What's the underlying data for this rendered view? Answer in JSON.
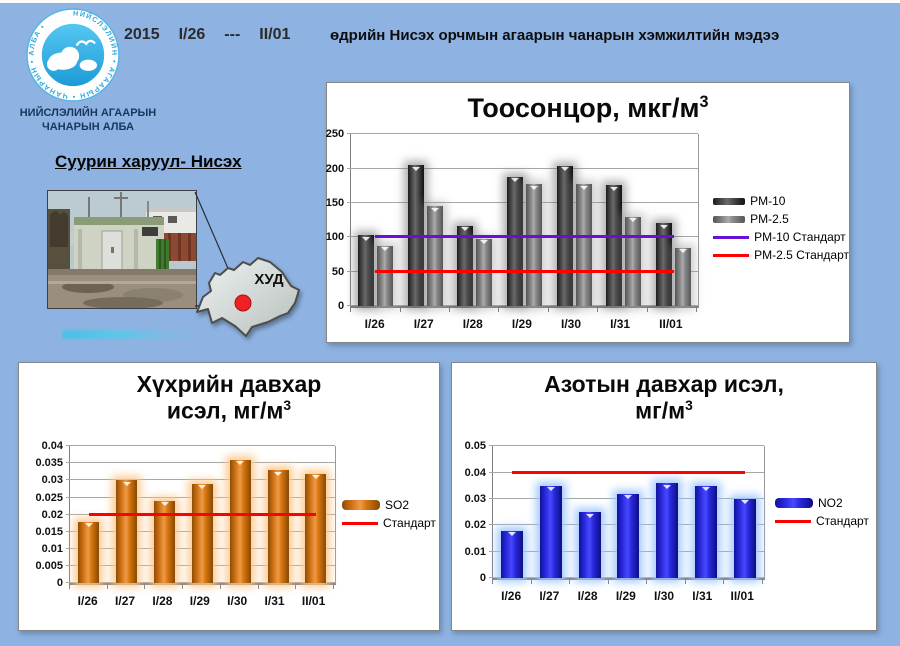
{
  "header": {
    "year": "2015",
    "date_from": "I/26",
    "separator": "---",
    "date_to": "II/01",
    "title": "өдрийн Нисэх орчмын агаарын чанарын хэмжилтийн мэдээ"
  },
  "org": {
    "line1": "НИЙСЛЭЛИЙН АГААРЫН",
    "line2": "ЧАНАРЫН АЛБА",
    "logo_ring_text": "НИЙСЛЭЛИЙН • АГААРЫН • ЧАНАРЫН • АЛБА •",
    "logo_icon": "cloud-logo-icon",
    "logo_blue": "#2FA8DC"
  },
  "station": {
    "heading": "Суурин харуул- Нисэх",
    "map_label": "ХУД",
    "map_dot_color": "#EE2222"
  },
  "chart_data": [
    {
      "id": "pm",
      "type": "bar",
      "title": "Тоосонцор, мкг/м³",
      "title_main": "Тоосонцор, мкг/м",
      "title_sup": "3",
      "categories": [
        "I/26",
        "I/27",
        "I/28",
        "I/29",
        "I/30",
        "I/31",
        "II/01"
      ],
      "series": [
        {
          "name": "PM-10",
          "color": "#3F3F3F",
          "css": "s-pm10",
          "values": [
            103,
            205,
            117,
            188,
            204,
            176,
            121
          ]
        },
        {
          "name": "PM-2.5",
          "color": "#848484",
          "css": "s-pm25",
          "values": [
            88,
            145,
            98,
            177,
            177,
            130,
            85
          ]
        }
      ],
      "ref_lines": [
        {
          "name": "PM-10 Стандарт",
          "color": "#6A0FD6",
          "value": 100
        },
        {
          "name": "PM-2.5 Стандарт",
          "color": "#FF0000",
          "value": 50
        }
      ],
      "ylim": [
        0,
        250
      ],
      "ytick": 50,
      "grid": true,
      "legend_position": "right"
    },
    {
      "id": "so2",
      "type": "bar",
      "title": "Хүхрийн давхар исэл, мг/м³",
      "title_line1": "Хүхрийн давхар",
      "title_line2": "исэл, мг/м",
      "title_sup": "3",
      "categories": [
        "I/26",
        "I/27",
        "I/28",
        "I/29",
        "I/30",
        "I/31",
        "II/01"
      ],
      "series": [
        {
          "name": "SO2",
          "color": "#E26B0A",
          "css": "s-so2",
          "values": [
            0.018,
            0.03,
            0.024,
            0.029,
            0.036,
            0.033,
            0.032
          ]
        }
      ],
      "ref_lines": [
        {
          "name": "Стандарт",
          "color": "#FF0000",
          "value": 0.02
        }
      ],
      "ylim": [
        0,
        0.04
      ],
      "ytick": 0.005,
      "grid": true,
      "legend_position": "right"
    },
    {
      "id": "no2",
      "type": "bar",
      "title": "Азотын давхар исэл, мг/м³",
      "title_line1": "Азотын давхар исэл,",
      "title_line2": "мг/м",
      "title_sup": "3",
      "categories": [
        "I/26",
        "I/27",
        "I/28",
        "I/29",
        "I/30",
        "I/31",
        "II/01"
      ],
      "series": [
        {
          "name": "NO2",
          "color": "#2525D8",
          "css": "s-no2",
          "values": [
            0.018,
            0.035,
            0.025,
            0.032,
            0.036,
            0.035,
            0.03
          ]
        }
      ],
      "ref_lines": [
        {
          "name": "Стандарт",
          "color": "#FF0000",
          "value": 0.04
        }
      ],
      "ylim": [
        0,
        0.05
      ],
      "ytick": 0.01,
      "grid": true,
      "legend_position": "right"
    }
  ]
}
